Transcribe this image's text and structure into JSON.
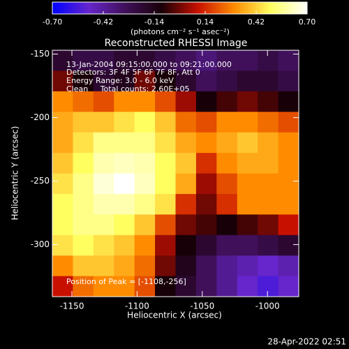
{
  "chart_data": {
    "type": "heatmap",
    "title": "Reconstructed RHESSI Image",
    "colorbar_label": "(photons cm⁻² s⁻¹ asec⁻²)",
    "xlabel": "Heliocentric X (arcsec)",
    "ylabel": "Heliocentric Y (arcsec)",
    "annotations": [
      "13-Jan-2004 09:15:00.000 to 09:21:00.000",
      "Detectors: 3F 4F 5F 6F 7F 8F, Att 0",
      "Energy Range: 3.0 - 6.0 keV",
      "Clean     Total counts: 2.60E+05"
    ],
    "peak_note": "Position of Peak = [-1108,-256]",
    "footer": "28-Apr-2022 02:51",
    "xlim": [
      -1165,
      -976
    ],
    "ylim": [
      -341,
      -147
    ],
    "xticks": [
      -1150,
      -1100,
      -1050,
      -1000
    ],
    "yticks": [
      -150,
      -200,
      -250,
      -300
    ],
    "clim": [
      -0.7,
      0.7
    ],
    "cticks": [
      {
        "value": -0.7,
        "label": "-0.70"
      },
      {
        "value": -0.42,
        "label": "-0.42"
      },
      {
        "value": -0.14,
        "label": "-0.14"
      },
      {
        "value": 0.14,
        "label": "0.14"
      },
      {
        "value": 0.42,
        "label": "0.42"
      },
      {
        "value": 0.7,
        "label": "0.70"
      }
    ],
    "colors": [
      "#0000ff",
      "#6626cc",
      "#40105a",
      "#180008",
      "#c81000",
      "#ff8c00",
      "#ffff60",
      "#ffffff"
    ],
    "z": [
      [
        -0.2,
        -0.25,
        -0.25,
        -0.2,
        -0.2,
        -0.25,
        -0.3,
        -0.35,
        -0.3,
        -0.3,
        -0.25,
        -0.3
      ],
      [
        0.0,
        -0.1,
        -0.2,
        -0.15,
        0.0,
        -0.1,
        -0.2,
        -0.3,
        -0.25,
        -0.2,
        -0.2,
        -0.25
      ],
      [
        0.3,
        0.25,
        0.2,
        0.3,
        0.3,
        0.2,
        0.05,
        -0.1,
        -0.05,
        0.0,
        -0.05,
        -0.1
      ],
      [
        0.35,
        0.4,
        0.4,
        0.45,
        0.5,
        0.4,
        0.25,
        0.2,
        0.3,
        0.3,
        0.25,
        0.2
      ],
      [
        0.35,
        0.45,
        0.55,
        0.55,
        0.55,
        0.45,
        0.35,
        0.3,
        0.35,
        0.4,
        0.35,
        0.3
      ],
      [
        0.4,
        0.5,
        0.6,
        0.62,
        0.6,
        0.5,
        0.4,
        0.15,
        0.3,
        0.35,
        0.35,
        0.3
      ],
      [
        0.45,
        0.55,
        0.65,
        0.7,
        0.62,
        0.5,
        0.35,
        0.05,
        0.2,
        0.3,
        0.3,
        0.3
      ],
      [
        0.5,
        0.55,
        0.6,
        0.6,
        0.55,
        0.45,
        0.15,
        0.0,
        0.15,
        0.3,
        0.3,
        0.3
      ],
      [
        0.5,
        0.55,
        0.55,
        0.5,
        0.4,
        0.2,
        0.0,
        -0.05,
        -0.1,
        -0.05,
        0.0,
        0.1
      ],
      [
        0.45,
        0.5,
        0.45,
        0.4,
        0.3,
        0.05,
        -0.1,
        -0.2,
        -0.3,
        -0.3,
        -0.25,
        -0.2
      ],
      [
        0.3,
        0.4,
        0.4,
        0.35,
        0.25,
        0.0,
        -0.15,
        -0.3,
        -0.4,
        -0.45,
        -0.5,
        -0.45
      ],
      [
        0.1,
        0.25,
        0.3,
        0.3,
        0.2,
        -0.1,
        -0.2,
        -0.3,
        -0.4,
        -0.5,
        -0.55,
        -0.5
      ]
    ]
  }
}
